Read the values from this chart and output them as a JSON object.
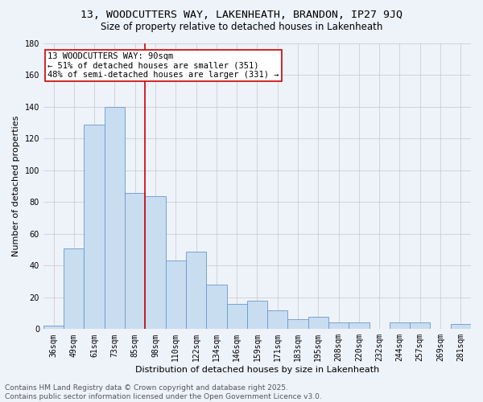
{
  "title": "13, WOODCUTTERS WAY, LAKENHEATH, BRANDON, IP27 9JQ",
  "subtitle": "Size of property relative to detached houses in Lakenheath",
  "xlabel": "Distribution of detached houses by size in Lakenheath",
  "ylabel": "Number of detached properties",
  "categories": [
    "36sqm",
    "49sqm",
    "61sqm",
    "73sqm",
    "85sqm",
    "98sqm",
    "110sqm",
    "122sqm",
    "134sqm",
    "146sqm",
    "159sqm",
    "171sqm",
    "183sqm",
    "195sqm",
    "208sqm",
    "220sqm",
    "232sqm",
    "244sqm",
    "257sqm",
    "269sqm",
    "281sqm"
  ],
  "values": [
    2,
    51,
    129,
    140,
    86,
    84,
    43,
    49,
    28,
    16,
    18,
    12,
    6,
    8,
    4,
    4,
    0,
    4,
    4,
    0,
    3
  ],
  "bar_color": "#c9ddf0",
  "bar_edge_color": "#6699cc",
  "marker_index": 4,
  "ylim": [
    0,
    180
  ],
  "yticks": [
    0,
    20,
    40,
    60,
    80,
    100,
    120,
    140,
    160,
    180
  ],
  "annotation_title": "13 WOODCUTTERS WAY: 90sqm",
  "annotation_line1": "← 51% of detached houses are smaller (351)",
  "annotation_line2": "48% of semi-detached houses are larger (331) →",
  "annotation_box_color": "#ffffff",
  "annotation_box_edge": "#cc0000",
  "vline_color": "#cc0000",
  "bg_color": "#eef2f9",
  "footer1": "Contains HM Land Registry data © Crown copyright and database right 2025.",
  "footer2": "Contains public sector information licensed under the Open Government Licence v3.0.",
  "grid_color": "#c8c8c8",
  "title_fontsize": 9.5,
  "subtitle_fontsize": 8.5,
  "axis_label_fontsize": 8,
  "tick_fontsize": 7,
  "annotation_fontsize": 7.5,
  "footer_fontsize": 6.5
}
